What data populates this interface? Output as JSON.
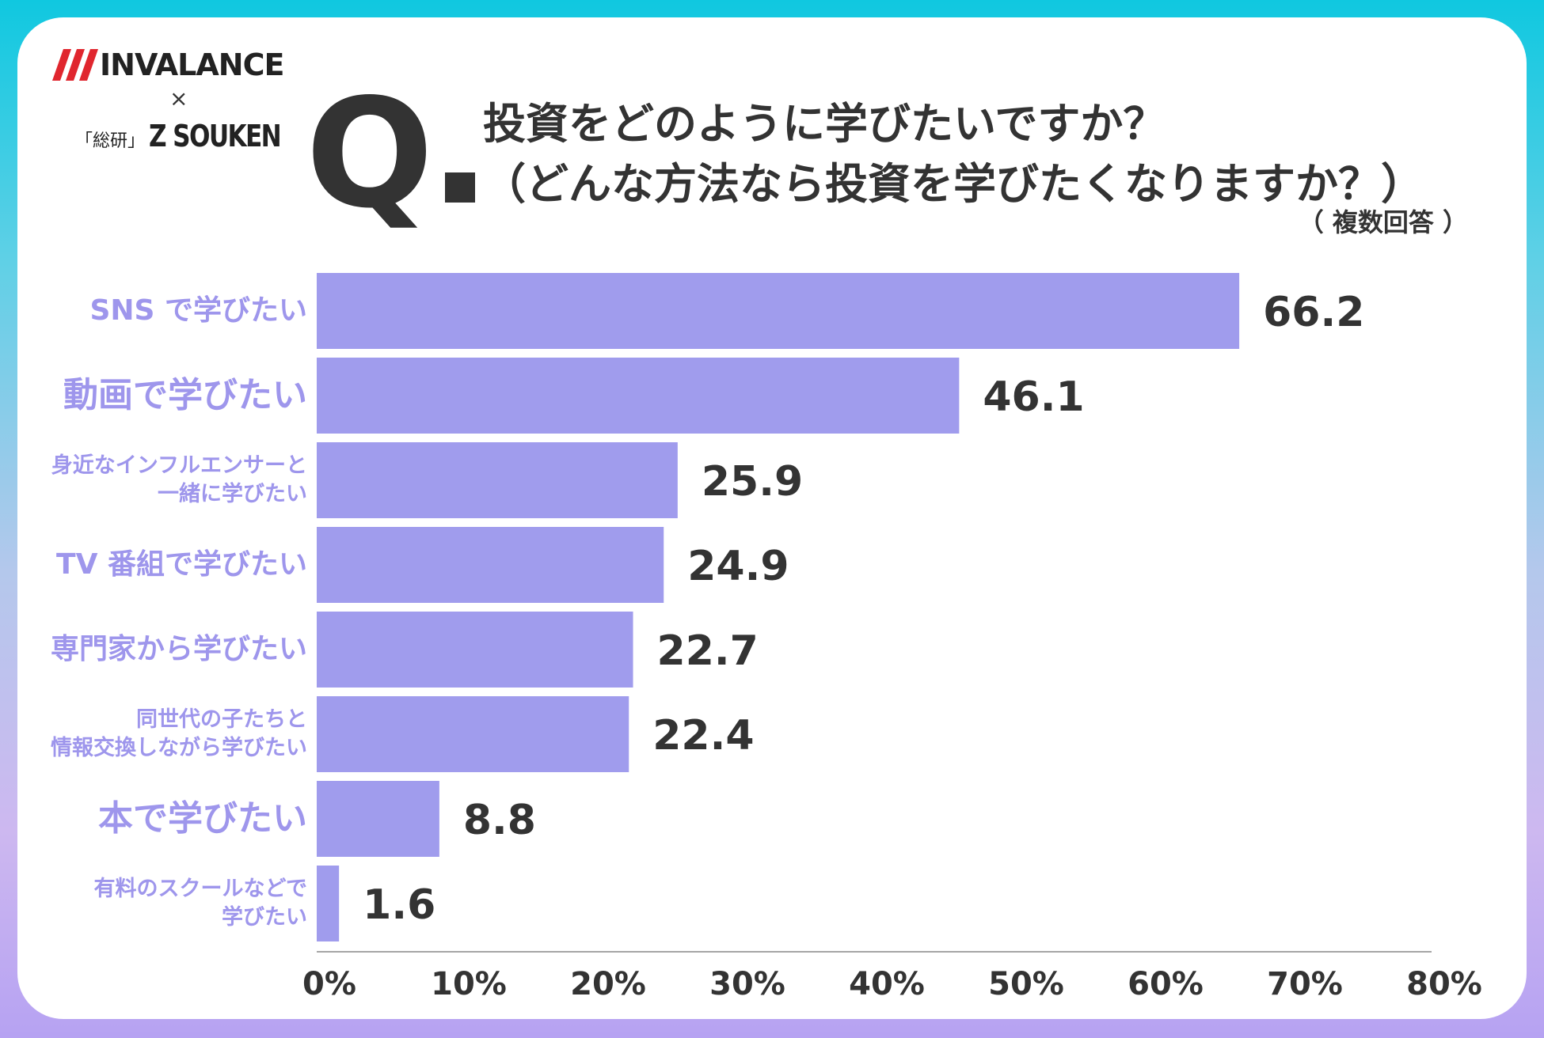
{
  "branding": {
    "brand_name": "INVALANCE",
    "times": "×",
    "partner_mark": "「総研」",
    "partner_name": "Z SOUKEN"
  },
  "question": {
    "mark": "Q",
    "title_line1": "投資をどのように学びたいですか？",
    "title_line2": "（どんな方法なら投資を学びたくなりますか？）",
    "note": "（ 複数回答 ）"
  },
  "colors": {
    "bar": "#a09ced",
    "label": "#9e96ec",
    "text": "#333333",
    "axis": "#888888"
  },
  "chart_data": {
    "type": "bar",
    "orientation": "horizontal",
    "categories": [
      "SNS で学びたい",
      "動画で学びたい",
      "身近なインフルエンサーと\n一緒に学びたい",
      "TV 番組で学びたい",
      "専門家から学びたい",
      "同世代の子たちと\n情報交換しながら学びたい",
      "本で学びたい",
      "有料のスクールなどで\n学びたい"
    ],
    "values": [
      66.2,
      46.1,
      25.9,
      24.9,
      22.7,
      22.4,
      8.8,
      1.6
    ],
    "value_labels": [
      "66.2",
      "46.1",
      "25.9",
      "24.9",
      "22.7",
      "22.4",
      "8.8",
      "1.6"
    ],
    "x_ticks": [
      "0%",
      "10%",
      "20%",
      "30%",
      "40%",
      "50%",
      "60%",
      "70%",
      "80%"
    ],
    "xlim": [
      0,
      80
    ],
    "grid": false
  }
}
